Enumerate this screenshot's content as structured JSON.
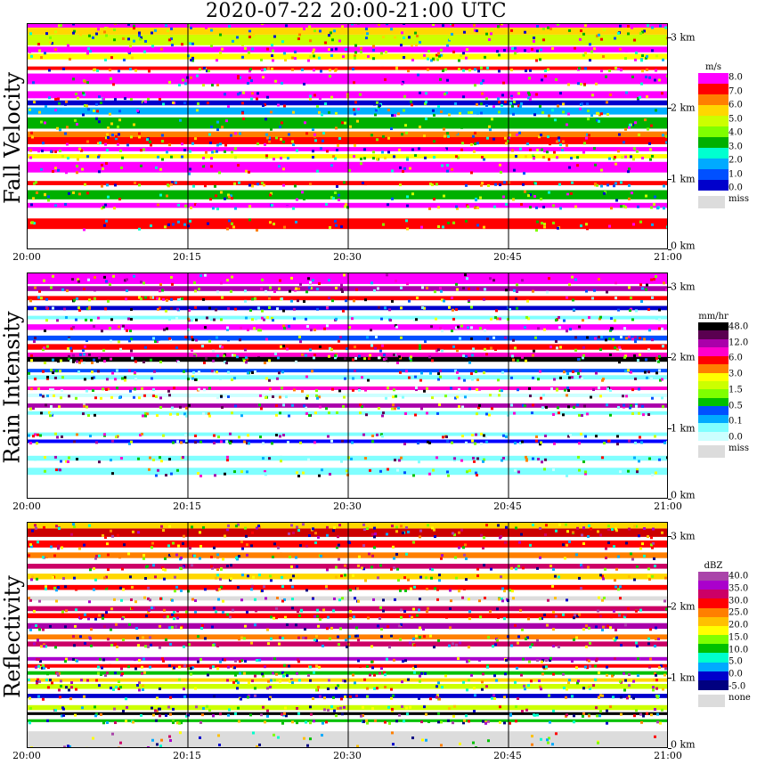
{
  "title": "2020-07-22   20:00-21:00 UTC",
  "x_ticks": [
    "20:00",
    "20:15",
    "20:30",
    "20:45",
    "21:00"
  ],
  "y_ticks": [
    "3 km",
    "2 km",
    "1 km",
    "0 km"
  ],
  "y_tick_values_km": [
    3,
    2,
    1,
    0
  ],
  "panels": [
    {
      "name": "Fall Velocity",
      "legend_unit": "m/s",
      "legend_colors": [
        "#ff00ff",
        "#ff0000",
        "#ff7f00",
        "#ffd700",
        "#ccff00",
        "#7fff00",
        "#00b000",
        "#00ffd0",
        "#00aaff",
        "#0050ff",
        "#0000cc"
      ],
      "legend_labels": [
        "8.0",
        "7.0",
        "6.0",
        "5.0",
        "4.0",
        "3.0",
        "2.0",
        "1.0",
        "0.0"
      ],
      "missing_label": "miss",
      "layers": [
        {
          "from_km": 0.3,
          "to_km": 0.45,
          "color": "#ff0000"
        },
        {
          "from_km": 0.6,
          "to_km": 0.67,
          "color": "#ff00ff"
        },
        {
          "from_km": 0.72,
          "to_km": 0.85,
          "color": "#00b000"
        },
        {
          "from_km": 0.92,
          "to_km": 0.98,
          "color": "#ff0000"
        },
        {
          "from_km": 1.1,
          "to_km": 1.25,
          "color": "#ff00ff"
        },
        {
          "from_km": 1.3,
          "to_km": 1.36,
          "color": "#ffff00"
        },
        {
          "from_km": 1.4,
          "to_km": 1.46,
          "color": "#ff00ff"
        },
        {
          "from_km": 1.5,
          "to_km": 1.6,
          "color": "#ff0000"
        },
        {
          "from_km": 1.6,
          "to_km": 1.68,
          "color": "#ff7f00"
        },
        {
          "from_km": 1.72,
          "to_km": 1.88,
          "color": "#00b000"
        },
        {
          "from_km": 1.92,
          "to_km": 2.02,
          "color": "#00b0ff"
        },
        {
          "from_km": 2.05,
          "to_km": 2.12,
          "color": "#0000cc"
        },
        {
          "from_km": 2.15,
          "to_km": 2.25,
          "color": "#ff00ff"
        },
        {
          "from_km": 2.35,
          "to_km": 2.5,
          "color": "#ff00ff"
        },
        {
          "from_km": 2.55,
          "to_km": 2.6,
          "color": "#ff0000"
        },
        {
          "from_km": 2.7,
          "to_km": 2.78,
          "color": "#ffff00"
        },
        {
          "from_km": 2.8,
          "to_km": 2.88,
          "color": "#ff00ff"
        },
        {
          "from_km": 2.9,
          "to_km": 3.05,
          "color": "#ccff00"
        },
        {
          "from_km": 3.05,
          "to_km": 3.15,
          "color": "#ffd700"
        },
        {
          "from_km": 3.15,
          "to_km": 3.25,
          "color": "#ff00ff"
        }
      ]
    },
    {
      "name": "Rain Intensity",
      "legend_unit": "mm/hr",
      "legend_colors": [
        "#000000",
        "#5a0050",
        "#aa00aa",
        "#ff00cc",
        "#ff0000",
        "#ff7f00",
        "#ffff00",
        "#ccff00",
        "#7fff00",
        "#00c000",
        "#0050ff",
        "#00aaff",
        "#80ffff",
        "#ccffff"
      ],
      "legend_labels": [
        "48.0",
        "12.0",
        "6.0",
        "3.0",
        "1.5",
        "0.5",
        "0.1",
        "0.0"
      ],
      "missing_label": "miss",
      "layers": [
        {
          "from_km": 0.35,
          "to_km": 0.45,
          "color": "#80ffff"
        },
        {
          "from_km": 0.55,
          "to_km": 0.62,
          "color": "#80ffff"
        },
        {
          "from_km": 0.8,
          "to_km": 0.85,
          "color": "#0000ff"
        },
        {
          "from_km": 0.9,
          "to_km": 0.95,
          "color": "#80ffff"
        },
        {
          "from_km": 1.2,
          "to_km": 1.25,
          "color": "#80ffff"
        },
        {
          "from_km": 1.3,
          "to_km": 1.36,
          "color": "#aa00aa"
        },
        {
          "from_km": 1.45,
          "to_km": 1.5,
          "color": "#ccffff"
        },
        {
          "from_km": 1.55,
          "to_km": 1.6,
          "color": "#ff00cc"
        },
        {
          "from_km": 1.7,
          "to_km": 1.76,
          "color": "#80ffff"
        },
        {
          "from_km": 1.8,
          "to_km": 1.85,
          "color": "#0050ff"
        },
        {
          "from_km": 1.95,
          "to_km": 2.02,
          "color": "#000000"
        },
        {
          "from_km": 2.02,
          "to_km": 2.08,
          "color": "#ff00cc"
        },
        {
          "from_km": 2.12,
          "to_km": 2.2,
          "color": "#ff0000"
        },
        {
          "from_km": 2.25,
          "to_km": 2.32,
          "color": "#0050ff"
        },
        {
          "from_km": 2.4,
          "to_km": 2.48,
          "color": "#ff00ff"
        },
        {
          "from_km": 2.55,
          "to_km": 2.6,
          "color": "#80ffff"
        },
        {
          "from_km": 2.68,
          "to_km": 2.74,
          "color": "#0000cc"
        },
        {
          "from_km": 2.82,
          "to_km": 2.88,
          "color": "#ff0000"
        },
        {
          "from_km": 2.95,
          "to_km": 3.02,
          "color": "#aa00aa"
        },
        {
          "from_km": 3.05,
          "to_km": 3.2,
          "color": "#ff00ff"
        }
      ]
    },
    {
      "name": "Reflectivity",
      "legend_unit": "dBZ",
      "legend_colors": [
        "#aa44aa",
        "#aa00cc",
        "#cc0066",
        "#ff0000",
        "#ff7f00",
        "#ffc000",
        "#ffff00",
        "#7fff00",
        "#00c000",
        "#00ffcc",
        "#00aaff",
        "#0000cc",
        "#000080"
      ],
      "legend_labels": [
        "40.0",
        "35.0",
        "30.0",
        "25.0",
        "20.0",
        "15.0",
        "10.0",
        "5.0",
        "0.0",
        "-5.0"
      ],
      "missing_label": "none",
      "layers": [
        {
          "from_km": 0.0,
          "to_km": 0.25,
          "color": "#dcdcdc"
        },
        {
          "from_km": 0.38,
          "to_km": 0.42,
          "color": "#00c000"
        },
        {
          "from_km": 0.48,
          "to_km": 0.52,
          "color": "#000000"
        },
        {
          "from_km": 0.55,
          "to_km": 0.62,
          "color": "#ccff00"
        },
        {
          "from_km": 0.72,
          "to_km": 0.78,
          "color": "#0000cc"
        },
        {
          "from_km": 0.85,
          "to_km": 0.92,
          "color": "#ccff00"
        },
        {
          "from_km": 0.95,
          "to_km": 1.0,
          "color": "#ffd700"
        },
        {
          "from_km": 1.05,
          "to_km": 1.1,
          "color": "#00c000"
        },
        {
          "from_km": 1.15,
          "to_km": 1.2,
          "color": "#ff0000"
        },
        {
          "from_km": 1.25,
          "to_km": 1.3,
          "color": "#aa00cc"
        },
        {
          "from_km": 1.45,
          "to_km": 1.52,
          "color": "#cc0066"
        },
        {
          "from_km": 1.55,
          "to_km": 1.62,
          "color": "#ff7f00"
        },
        {
          "from_km": 1.7,
          "to_km": 1.78,
          "color": "#aa00aa"
        },
        {
          "from_km": 1.85,
          "to_km": 1.92,
          "color": "#ff0000"
        },
        {
          "from_km": 1.95,
          "to_km": 2.02,
          "color": "#cc0066"
        },
        {
          "from_km": 2.1,
          "to_km": 2.16,
          "color": "#dcdcdc"
        },
        {
          "from_km": 2.25,
          "to_km": 2.32,
          "color": "#ff0000"
        },
        {
          "from_km": 2.4,
          "to_km": 2.48,
          "color": "#ffd700"
        },
        {
          "from_km": 2.55,
          "to_km": 2.62,
          "color": "#cc0066"
        },
        {
          "from_km": 2.7,
          "to_km": 2.78,
          "color": "#ff7f00"
        },
        {
          "from_km": 2.85,
          "to_km": 2.95,
          "color": "#ff0000"
        },
        {
          "from_km": 3.0,
          "to_km": 3.12,
          "color": "#cc0000"
        },
        {
          "from_km": 3.12,
          "to_km": 3.2,
          "color": "#ffd700"
        }
      ]
    }
  ],
  "chart_data": [
    {
      "type": "heatmap",
      "title": "2020-07-22   20:00-21:00 UTC",
      "ylabel": "Fall Velocity",
      "colorbar_unit": "m/s",
      "x": [
        "20:00",
        "20:15",
        "20:30",
        "20:45",
        "21:00"
      ],
      "ylim_km": [
        0,
        3.2
      ],
      "colorbar": [
        "8.0",
        "7.0",
        "6.0",
        "5.0",
        "4.0",
        "3.0",
        "2.0",
        "1.0",
        "0.0"
      ],
      "missing": "miss"
    },
    {
      "type": "heatmap",
      "ylabel": "Rain Intensity",
      "colorbar_unit": "mm/hr",
      "x": [
        "20:00",
        "20:15",
        "20:30",
        "20:45",
        "21:00"
      ],
      "ylim_km": [
        0,
        3.2
      ],
      "colorbar": [
        "48.0",
        "12.0",
        "6.0",
        "3.0",
        "1.5",
        "0.5",
        "0.1",
        "0.0"
      ],
      "missing": "miss"
    },
    {
      "type": "heatmap",
      "ylabel": "Reflectivity",
      "colorbar_unit": "dBZ",
      "x": [
        "20:00",
        "20:15",
        "20:30",
        "20:45",
        "21:00"
      ],
      "ylim_km": [
        0,
        3.2
      ],
      "colorbar": [
        "40.0",
        "35.0",
        "30.0",
        "25.0",
        "20.0",
        "15.0",
        "10.0",
        "5.0",
        "0.0",
        "-5.0"
      ],
      "missing": "none"
    }
  ]
}
